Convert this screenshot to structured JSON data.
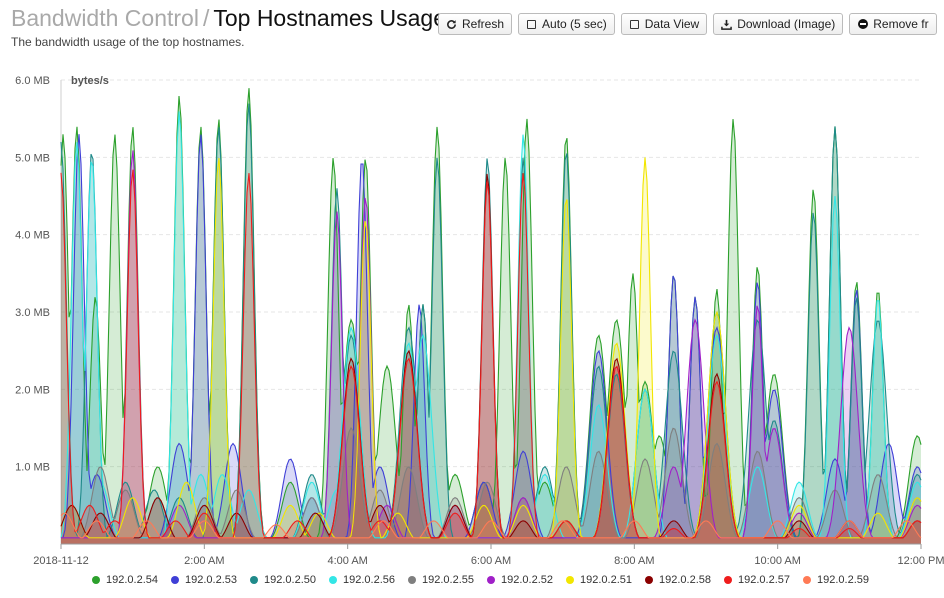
{
  "header": {
    "parent_title": "Bandwidth Control",
    "separator": "/",
    "title": "Top Hostnames Usage",
    "subtitle": "The bandwidth usage of the top hostnames."
  },
  "toolbar": {
    "refresh": "Refresh",
    "auto": "Auto (5 sec)",
    "data_view": "Data View",
    "download": "Download (Image)",
    "remove": "Remove fr"
  },
  "chart_data": {
    "type": "area",
    "ylabel": "bytes/s",
    "y_ticks": [
      "6.0 MB",
      "5.0 MB",
      "4.0 MB",
      "3.0 MB",
      "2.0 MB",
      "1.0 MB"
    ],
    "y_tick_values": [
      6.0,
      5.0,
      4.0,
      3.0,
      2.0,
      1.0
    ],
    "ylim": [
      0,
      6.0
    ],
    "x_ticks": [
      "2018-11-12",
      "2:00 AM",
      "4:00 AM",
      "6:00 AM",
      "8:00 AM",
      "10:00 AM",
      "12:00 PM"
    ],
    "x_tick_hours": [
      0,
      2,
      4,
      6,
      8,
      10,
      12
    ],
    "xlim_hours": [
      0,
      12
    ],
    "grid": true,
    "legend_position": "bottom",
    "series": [
      {
        "name": "192.0.2.54",
        "color": "#2ca02c",
        "peaks": [
          [
            0.03,
            5.3
          ],
          [
            0.22,
            5.4
          ],
          [
            0.48,
            3.2
          ],
          [
            0.75,
            5.3
          ],
          [
            1.0,
            5.4
          ],
          [
            1.35,
            1.0
          ],
          [
            1.65,
            5.8
          ],
          [
            1.95,
            5.4
          ],
          [
            2.2,
            5.5
          ],
          [
            2.62,
            5.9
          ],
          [
            3.2,
            0.8
          ],
          [
            3.8,
            5.0
          ],
          [
            4.05,
            2.9
          ],
          [
            4.25,
            5.0
          ],
          [
            4.55,
            2.3
          ],
          [
            4.85,
            3.1
          ],
          [
            5.05,
            3.1
          ],
          [
            5.25,
            5.4
          ],
          [
            5.5,
            0.9
          ],
          [
            5.9,
            0.8
          ],
          [
            6.2,
            5.0
          ],
          [
            6.5,
            5.5
          ],
          [
            6.75,
            0.8
          ],
          [
            7.05,
            5.3
          ],
          [
            7.5,
            2.7
          ],
          [
            7.75,
            2.9
          ],
          [
            7.98,
            3.5
          ],
          [
            8.15,
            2.1
          ],
          [
            8.35,
            1.4
          ],
          [
            8.55,
            3.5
          ],
          [
            8.85,
            3.2
          ],
          [
            9.15,
            3.3
          ],
          [
            9.38,
            5.5
          ],
          [
            9.72,
            3.6
          ],
          [
            9.95,
            2.2
          ],
          [
            10.5,
            4.6
          ],
          [
            10.8,
            5.4
          ],
          [
            11.1,
            3.4
          ],
          [
            11.4,
            3.3
          ],
          [
            11.95,
            1.4
          ]
        ]
      },
      {
        "name": "192.0.2.53",
        "color": "#3f3fd6",
        "peaks": [
          [
            0.25,
            5.3
          ],
          [
            0.5,
            0.9
          ],
          [
            1.65,
            1.3
          ],
          [
            1.95,
            5.3
          ],
          [
            2.4,
            1.3
          ],
          [
            3.2,
            1.1
          ],
          [
            3.5,
            0.6
          ],
          [
            4.2,
            5.0
          ],
          [
            4.45,
            1.0
          ],
          [
            5.0,
            3.1
          ],
          [
            5.9,
            0.8
          ],
          [
            6.45,
            1.2
          ],
          [
            7.5,
            2.5
          ],
          [
            8.55,
            3.5
          ],
          [
            8.85,
            3.2
          ],
          [
            9.15,
            2.8
          ],
          [
            9.72,
            3.4
          ],
          [
            9.95,
            2.0
          ],
          [
            10.8,
            1.1
          ],
          [
            11.1,
            3.3
          ],
          [
            11.55,
            1.3
          ],
          [
            11.95,
            1.0
          ]
        ]
      },
      {
        "name": "192.0.2.50",
        "color": "#1f8a8a",
        "peaks": [
          [
            0.0,
            5.2
          ],
          [
            0.43,
            5.1
          ],
          [
            0.9,
            0.8
          ],
          [
            1.3,
            0.7
          ],
          [
            1.65,
            0.6
          ],
          [
            2.2,
            5.4
          ],
          [
            2.62,
            5.7
          ],
          [
            3.5,
            0.9
          ],
          [
            3.85,
            4.6
          ],
          [
            4.05,
            2.7
          ],
          [
            4.85,
            2.8
          ],
          [
            5.05,
            3.1
          ],
          [
            5.25,
            5.0
          ],
          [
            5.95,
            5.0
          ],
          [
            6.45,
            5.0
          ],
          [
            6.75,
            1.0
          ],
          [
            7.05,
            5.1
          ],
          [
            7.5,
            2.3
          ],
          [
            7.75,
            2.2
          ],
          [
            8.15,
            2.0
          ],
          [
            8.55,
            2.5
          ],
          [
            9.15,
            3.0
          ],
          [
            9.72,
            2.9
          ],
          [
            9.95,
            1.6
          ],
          [
            10.5,
            4.3
          ],
          [
            10.8,
            5.4
          ],
          [
            11.1,
            3.2
          ],
          [
            11.4,
            2.9
          ],
          [
            11.95,
            0.9
          ]
        ]
      },
      {
        "name": "192.0.2.56",
        "color": "#33e6e6",
        "peaks": [
          [
            0.22,
            5.2
          ],
          [
            0.43,
            5.0
          ],
          [
            0.55,
            0.8
          ],
          [
            1.65,
            5.6
          ],
          [
            1.95,
            0.9
          ],
          [
            2.25,
            0.9
          ],
          [
            2.62,
            0.7
          ],
          [
            3.5,
            0.8
          ],
          [
            3.85,
            0.7
          ],
          [
            4.05,
            2.8
          ],
          [
            4.85,
            2.6
          ],
          [
            5.05,
            2.7
          ],
          [
            6.45,
            5.3
          ],
          [
            6.75,
            0.9
          ],
          [
            7.5,
            1.8
          ],
          [
            8.15,
            2.0
          ],
          [
            9.15,
            2.7
          ],
          [
            9.72,
            1.0
          ],
          [
            10.3,
            0.8
          ],
          [
            10.8,
            4.5
          ],
          [
            11.4,
            3.2
          ],
          [
            11.95,
            0.8
          ]
        ]
      },
      {
        "name": "192.0.2.55",
        "color": "#7f7f7f",
        "peaks": [
          [
            0.55,
            1.0
          ],
          [
            0.9,
            0.7
          ],
          [
            1.35,
            0.6
          ],
          [
            2.0,
            0.6
          ],
          [
            2.45,
            0.7
          ],
          [
            3.5,
            0.6
          ],
          [
            4.05,
            1.5
          ],
          [
            4.45,
            0.7
          ],
          [
            4.85,
            1.0
          ],
          [
            5.5,
            0.6
          ],
          [
            5.95,
            0.8
          ],
          [
            6.45,
            0.6
          ],
          [
            7.05,
            1.0
          ],
          [
            7.5,
            1.2
          ],
          [
            8.15,
            1.1
          ],
          [
            8.55,
            1.5
          ],
          [
            9.15,
            1.3
          ],
          [
            9.72,
            1.2
          ],
          [
            10.3,
            0.6
          ],
          [
            10.8,
            0.7
          ],
          [
            11.4,
            0.9
          ],
          [
            11.95,
            0.6
          ]
        ]
      },
      {
        "name": "192.0.2.52",
        "color": "#a020c8",
        "peaks": [
          [
            1.0,
            5.1
          ],
          [
            1.65,
            0.5
          ],
          [
            3.85,
            4.3
          ],
          [
            4.25,
            4.5
          ],
          [
            4.55,
            0.5
          ],
          [
            5.5,
            0.5
          ],
          [
            6.45,
            0.6
          ],
          [
            7.75,
            2.3
          ],
          [
            8.55,
            1.0
          ],
          [
            8.85,
            2.9
          ],
          [
            9.72,
            3.1
          ],
          [
            9.95,
            1.5
          ],
          [
            10.3,
            0.4
          ],
          [
            11.0,
            2.8
          ],
          [
            11.95,
            0.5
          ]
        ]
      },
      {
        "name": "192.0.2.51",
        "color": "#f2e600",
        "peaks": [
          [
            0.15,
            0.5
          ],
          [
            1.0,
            0.6
          ],
          [
            1.75,
            0.8
          ],
          [
            2.2,
            5.0
          ],
          [
            3.2,
            0.5
          ],
          [
            3.6,
            0.4
          ],
          [
            4.25,
            4.2
          ],
          [
            4.7,
            0.4
          ],
          [
            5.9,
            0.5
          ],
          [
            6.45,
            0.5
          ],
          [
            7.05,
            4.5
          ],
          [
            7.75,
            2.6
          ],
          [
            8.15,
            5.0
          ],
          [
            9.15,
            3.0
          ],
          [
            10.3,
            0.5
          ],
          [
            11.4,
            0.4
          ],
          [
            11.95,
            0.6
          ]
        ]
      },
      {
        "name": "192.0.2.58",
        "color": "#8b0000",
        "peaks": [
          [
            0.15,
            0.5
          ],
          [
            0.55,
            0.4
          ],
          [
            1.35,
            0.6
          ],
          [
            2.0,
            0.5
          ],
          [
            2.45,
            0.4
          ],
          [
            3.55,
            0.4
          ],
          [
            4.05,
            2.4
          ],
          [
            4.45,
            0.5
          ],
          [
            4.85,
            2.5
          ],
          [
            5.5,
            0.5
          ],
          [
            5.95,
            4.8
          ],
          [
            6.45,
            0.3
          ],
          [
            7.05,
            0.3
          ],
          [
            7.75,
            2.4
          ],
          [
            8.55,
            0.3
          ],
          [
            9.15,
            2.2
          ],
          [
            10.3,
            0.3
          ],
          [
            11.0,
            0.3
          ],
          [
            11.95,
            0.3
          ]
        ]
      },
      {
        "name": "192.0.2.57",
        "color": "#ef1c1c",
        "peaks": [
          [
            0.0,
            4.8
          ],
          [
            0.4,
            0.5
          ],
          [
            0.75,
            0.3
          ],
          [
            1.0,
            4.85
          ],
          [
            1.6,
            0.3
          ],
          [
            2.0,
            0.4
          ],
          [
            2.62,
            4.8
          ],
          [
            3.3,
            0.3
          ],
          [
            4.05,
            2.3
          ],
          [
            4.45,
            0.3
          ],
          [
            4.85,
            2.4
          ],
          [
            5.5,
            0.4
          ],
          [
            5.95,
            4.7
          ],
          [
            6.45,
            4.8
          ],
          [
            7.05,
            0.3
          ],
          [
            7.75,
            2.3
          ],
          [
            8.55,
            0.2
          ],
          [
            9.15,
            2.1
          ],
          [
            10.3,
            0.2
          ],
          [
            11.0,
            0.2
          ],
          [
            11.95,
            0.3
          ]
        ]
      },
      {
        "name": "192.0.2.59",
        "color": "#ff7a55",
        "peaks": [
          [
            0.05,
            0.4
          ],
          [
            0.5,
            0.3
          ],
          [
            1.2,
            0.3
          ],
          [
            2.0,
            0.3
          ],
          [
            3.0,
            0.25
          ],
          [
            4.5,
            0.3
          ],
          [
            5.2,
            0.3
          ],
          [
            6.0,
            0.3
          ],
          [
            7.0,
            0.3
          ],
          [
            8.0,
            0.3
          ],
          [
            9.0,
            0.3
          ],
          [
            10.0,
            0.3
          ],
          [
            11.0,
            0.3
          ],
          [
            11.8,
            0.3
          ]
        ]
      }
    ]
  }
}
